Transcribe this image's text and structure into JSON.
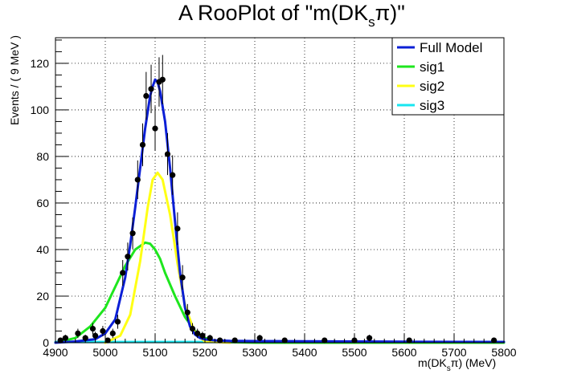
{
  "chart_data": {
    "type": "line",
    "title": "A RooPlot of \"m(DK",
    "title_sub": "s",
    "title_pi": "π)\"",
    "ylabel": "Events / ( 9 MeV )",
    "xlabel_main": "m(DK",
    "xlabel_sub": "s",
    "xlabel_end": "π) (MeV)",
    "xlim": [
      4900,
      5800
    ],
    "ylim": [
      0,
      131
    ],
    "x_ticks": [
      "4900",
      "5000",
      "5100",
      "5200",
      "5300",
      "5400",
      "5500",
      "5600",
      "5700",
      "5800"
    ],
    "y_ticks": [
      "0",
      "20",
      "40",
      "60",
      "80",
      "100",
      "120"
    ],
    "grid": true,
    "legend_position": "top-right",
    "series": [
      {
        "name": "Full Model",
        "color": "#0b1fd6",
        "x": [
          4900,
          4940,
          4980,
          5000,
          5020,
          5040,
          5050,
          5060,
          5070,
          5080,
          5090,
          5095,
          5100,
          5105,
          5110,
          5120,
          5130,
          5140,
          5150,
          5160,
          5170,
          5180,
          5190,
          5200,
          5220,
          5250,
          5300,
          5400,
          5500,
          5600,
          5700,
          5800
        ],
        "y": [
          0,
          0.5,
          1.5,
          4,
          10,
          28,
          42,
          58,
          75,
          92,
          106,
          110,
          113,
          112,
          108,
          95,
          75,
          52,
          30,
          15,
          7,
          3.5,
          2,
          1.4,
          1,
          0.8,
          0.7,
          0.6,
          0.5,
          0.4,
          0.35,
          0.3
        ]
      },
      {
        "name": "sig1",
        "color": "#1ee61e",
        "x": [
          4900,
          4940,
          4970,
          5000,
          5020,
          5040,
          5060,
          5080,
          5090,
          5100,
          5110,
          5120,
          5140,
          5160,
          5180,
          5200,
          5220,
          5250,
          5300,
          5800
        ],
        "y": [
          0,
          2,
          7,
          15,
          24,
          33,
          40,
          43,
          42.5,
          40,
          36,
          30,
          20,
          11,
          5,
          2,
          0.8,
          0.2,
          0,
          0
        ]
      },
      {
        "name": "sig2",
        "color": "#ffff14",
        "x": [
          5000,
          5030,
          5050,
          5070,
          5085,
          5095,
          5105,
          5115,
          5130,
          5145,
          5160,
          5180,
          5200,
          5250
        ],
        "y": [
          0,
          3,
          12,
          35,
          58,
          70,
          73,
          70,
          55,
          34,
          16,
          4,
          0.5,
          0
        ]
      },
      {
        "name": "sig3",
        "color": "#18e6f0",
        "x": [
          4900,
          5800
        ],
        "y": [
          0.3,
          0.3
        ]
      }
    ],
    "data_points": {
      "x": [
        4910,
        4920,
        4945,
        4960,
        4975,
        4980,
        4995,
        5005,
        5015,
        5025,
        5035,
        5045,
        5055,
        5065,
        5075,
        5082,
        5092,
        5100,
        5108,
        5115,
        5125,
        5135,
        5145,
        5155,
        5165,
        5175,
        5185,
        5195,
        5210,
        5230,
        5260,
        5310,
        5360,
        5440,
        5500,
        5530,
        5610,
        5780
      ],
      "y": [
        1,
        2,
        4,
        2,
        6,
        3,
        5,
        1,
        4,
        9,
        30,
        37,
        47,
        70,
        85,
        106,
        109,
        92,
        112,
        113,
        81,
        72,
        49,
        28,
        13,
        6,
        4,
        3,
        2,
        1,
        1,
        2,
        1,
        1,
        1,
        2,
        1,
        1
      ],
      "err": [
        1,
        1.4,
        2,
        1.4,
        2.4,
        1.7,
        2.2,
        1,
        2,
        3,
        5.5,
        6,
        6.8,
        8.3,
        9.2,
        10.3,
        10.4,
        9.6,
        10.6,
        10.6,
        9,
        8.5,
        7,
        5.3,
        3.6,
        2.4,
        2,
        1.7,
        1.4,
        1,
        1,
        1.4,
        1,
        1,
        1,
        1.4,
        1,
        1
      ]
    }
  }
}
